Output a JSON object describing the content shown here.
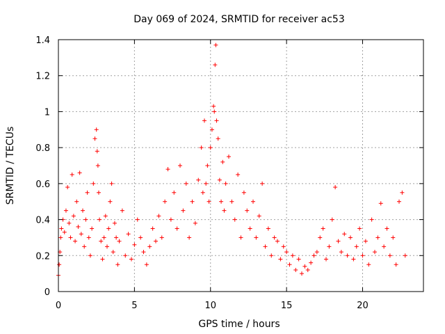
{
  "chart_data": {
    "type": "scatter",
    "title": "Day 069 of 2024, SRMTID for receiver ac53",
    "xlabel": "GPS time / hours",
    "ylabel": "SRMTID / TECUs",
    "xlim": [
      0,
      24
    ],
    "ylim": [
      0,
      1.4
    ],
    "x_ticks": [
      0,
      5,
      10,
      15,
      20
    ],
    "y_ticks": [
      0,
      0.2,
      0.4,
      0.6,
      0.8,
      1,
      1.2,
      1.4
    ],
    "x_tick_labels": [
      "0",
      "5",
      "10",
      "15",
      "20"
    ],
    "y_tick_labels": [
      "0",
      "0.2",
      "0.4",
      "0.6",
      "0.8",
      "1",
      "1.2",
      "1.4"
    ],
    "grid": true,
    "marker": "+",
    "marker_color": "#ff0000",
    "series": [
      {
        "name": "ac53",
        "x": [
          0.0,
          0.05,
          0.1,
          0.15,
          0.2,
          0.3,
          0.4,
          0.5,
          0.6,
          0.7,
          0.8,
          0.9,
          1.0,
          1.1,
          1.2,
          1.3,
          1.4,
          1.5,
          1.6,
          1.7,
          1.8,
          1.9,
          2.0,
          2.1,
          2.2,
          2.3,
          2.4,
          2.5,
          2.55,
          2.6,
          2.65,
          2.7,
          2.8,
          2.9,
          3.0,
          3.1,
          3.2,
          3.3,
          3.4,
          3.5,
          3.6,
          3.7,
          3.8,
          3.9,
          4.0,
          4.2,
          4.4,
          4.6,
          4.8,
          5.0,
          5.2,
          5.4,
          5.6,
          5.8,
          6.0,
          6.2,
          6.4,
          6.6,
          6.8,
          7.0,
          7.2,
          7.4,
          7.6,
          7.8,
          8.0,
          8.2,
          8.4,
          8.6,
          8.8,
          9.0,
          9.2,
          9.4,
          9.5,
          9.6,
          9.7,
          9.8,
          9.9,
          10.0,
          10.1,
          10.2,
          10.25,
          10.3,
          10.35,
          10.4,
          10.5,
          10.6,
          10.7,
          10.8,
          10.9,
          11.0,
          11.2,
          11.4,
          11.6,
          11.8,
          12.0,
          12.2,
          12.4,
          12.6,
          12.8,
          13.0,
          13.2,
          13.4,
          13.6,
          13.8,
          14.0,
          14.2,
          14.4,
          14.6,
          14.8,
          15.0,
          15.2,
          15.4,
          15.6,
          15.8,
          16.0,
          16.2,
          16.4,
          16.6,
          16.8,
          17.0,
          17.2,
          17.4,
          17.6,
          17.8,
          18.0,
          18.2,
          18.4,
          18.6,
          18.8,
          19.0,
          19.2,
          19.4,
          19.6,
          19.8,
          20.0,
          20.2,
          20.4,
          20.6,
          20.8,
          21.0,
          21.2,
          21.4,
          21.6,
          21.8,
          22.0,
          22.2,
          22.4,
          22.6,
          22.8
        ],
        "y": [
          0.09,
          0.15,
          0.22,
          0.3,
          0.35,
          0.4,
          0.33,
          0.45,
          0.58,
          0.38,
          0.3,
          0.65,
          0.42,
          0.28,
          0.5,
          0.36,
          0.66,
          0.32,
          0.45,
          0.25,
          0.4,
          0.55,
          0.3,
          0.2,
          0.35,
          0.6,
          0.85,
          0.9,
          0.78,
          0.7,
          0.55,
          0.4,
          0.28,
          0.18,
          0.3,
          0.42,
          0.25,
          0.35,
          0.5,
          0.6,
          0.22,
          0.38,
          0.3,
          0.15,
          0.28,
          0.45,
          0.2,
          0.32,
          0.18,
          0.26,
          0.4,
          0.3,
          0.22,
          0.15,
          0.25,
          0.35,
          0.28,
          0.42,
          0.3,
          0.5,
          0.68,
          0.4,
          0.55,
          0.35,
          0.7,
          0.45,
          0.6,
          0.3,
          0.5,
          0.38,
          0.62,
          0.8,
          0.55,
          0.95,
          0.6,
          0.7,
          0.5,
          0.8,
          0.9,
          1.03,
          1.0,
          1.26,
          1.37,
          0.95,
          0.85,
          0.62,
          0.5,
          0.72,
          0.45,
          0.6,
          0.75,
          0.5,
          0.4,
          0.65,
          0.3,
          0.55,
          0.45,
          0.35,
          0.5,
          0.3,
          0.42,
          0.6,
          0.25,
          0.35,
          0.2,
          0.3,
          0.28,
          0.18,
          0.25,
          0.22,
          0.15,
          0.2,
          0.12,
          0.18,
          0.1,
          0.14,
          0.12,
          0.16,
          0.2,
          0.22,
          0.3,
          0.35,
          0.18,
          0.25,
          0.4,
          0.58,
          0.28,
          0.22,
          0.32,
          0.2,
          0.3,
          0.18,
          0.25,
          0.35,
          0.2,
          0.28,
          0.15,
          0.4,
          0.22,
          0.3,
          0.49,
          0.25,
          0.35,
          0.2,
          0.3,
          0.15,
          0.5,
          0.55,
          0.2
        ]
      }
    ]
  }
}
